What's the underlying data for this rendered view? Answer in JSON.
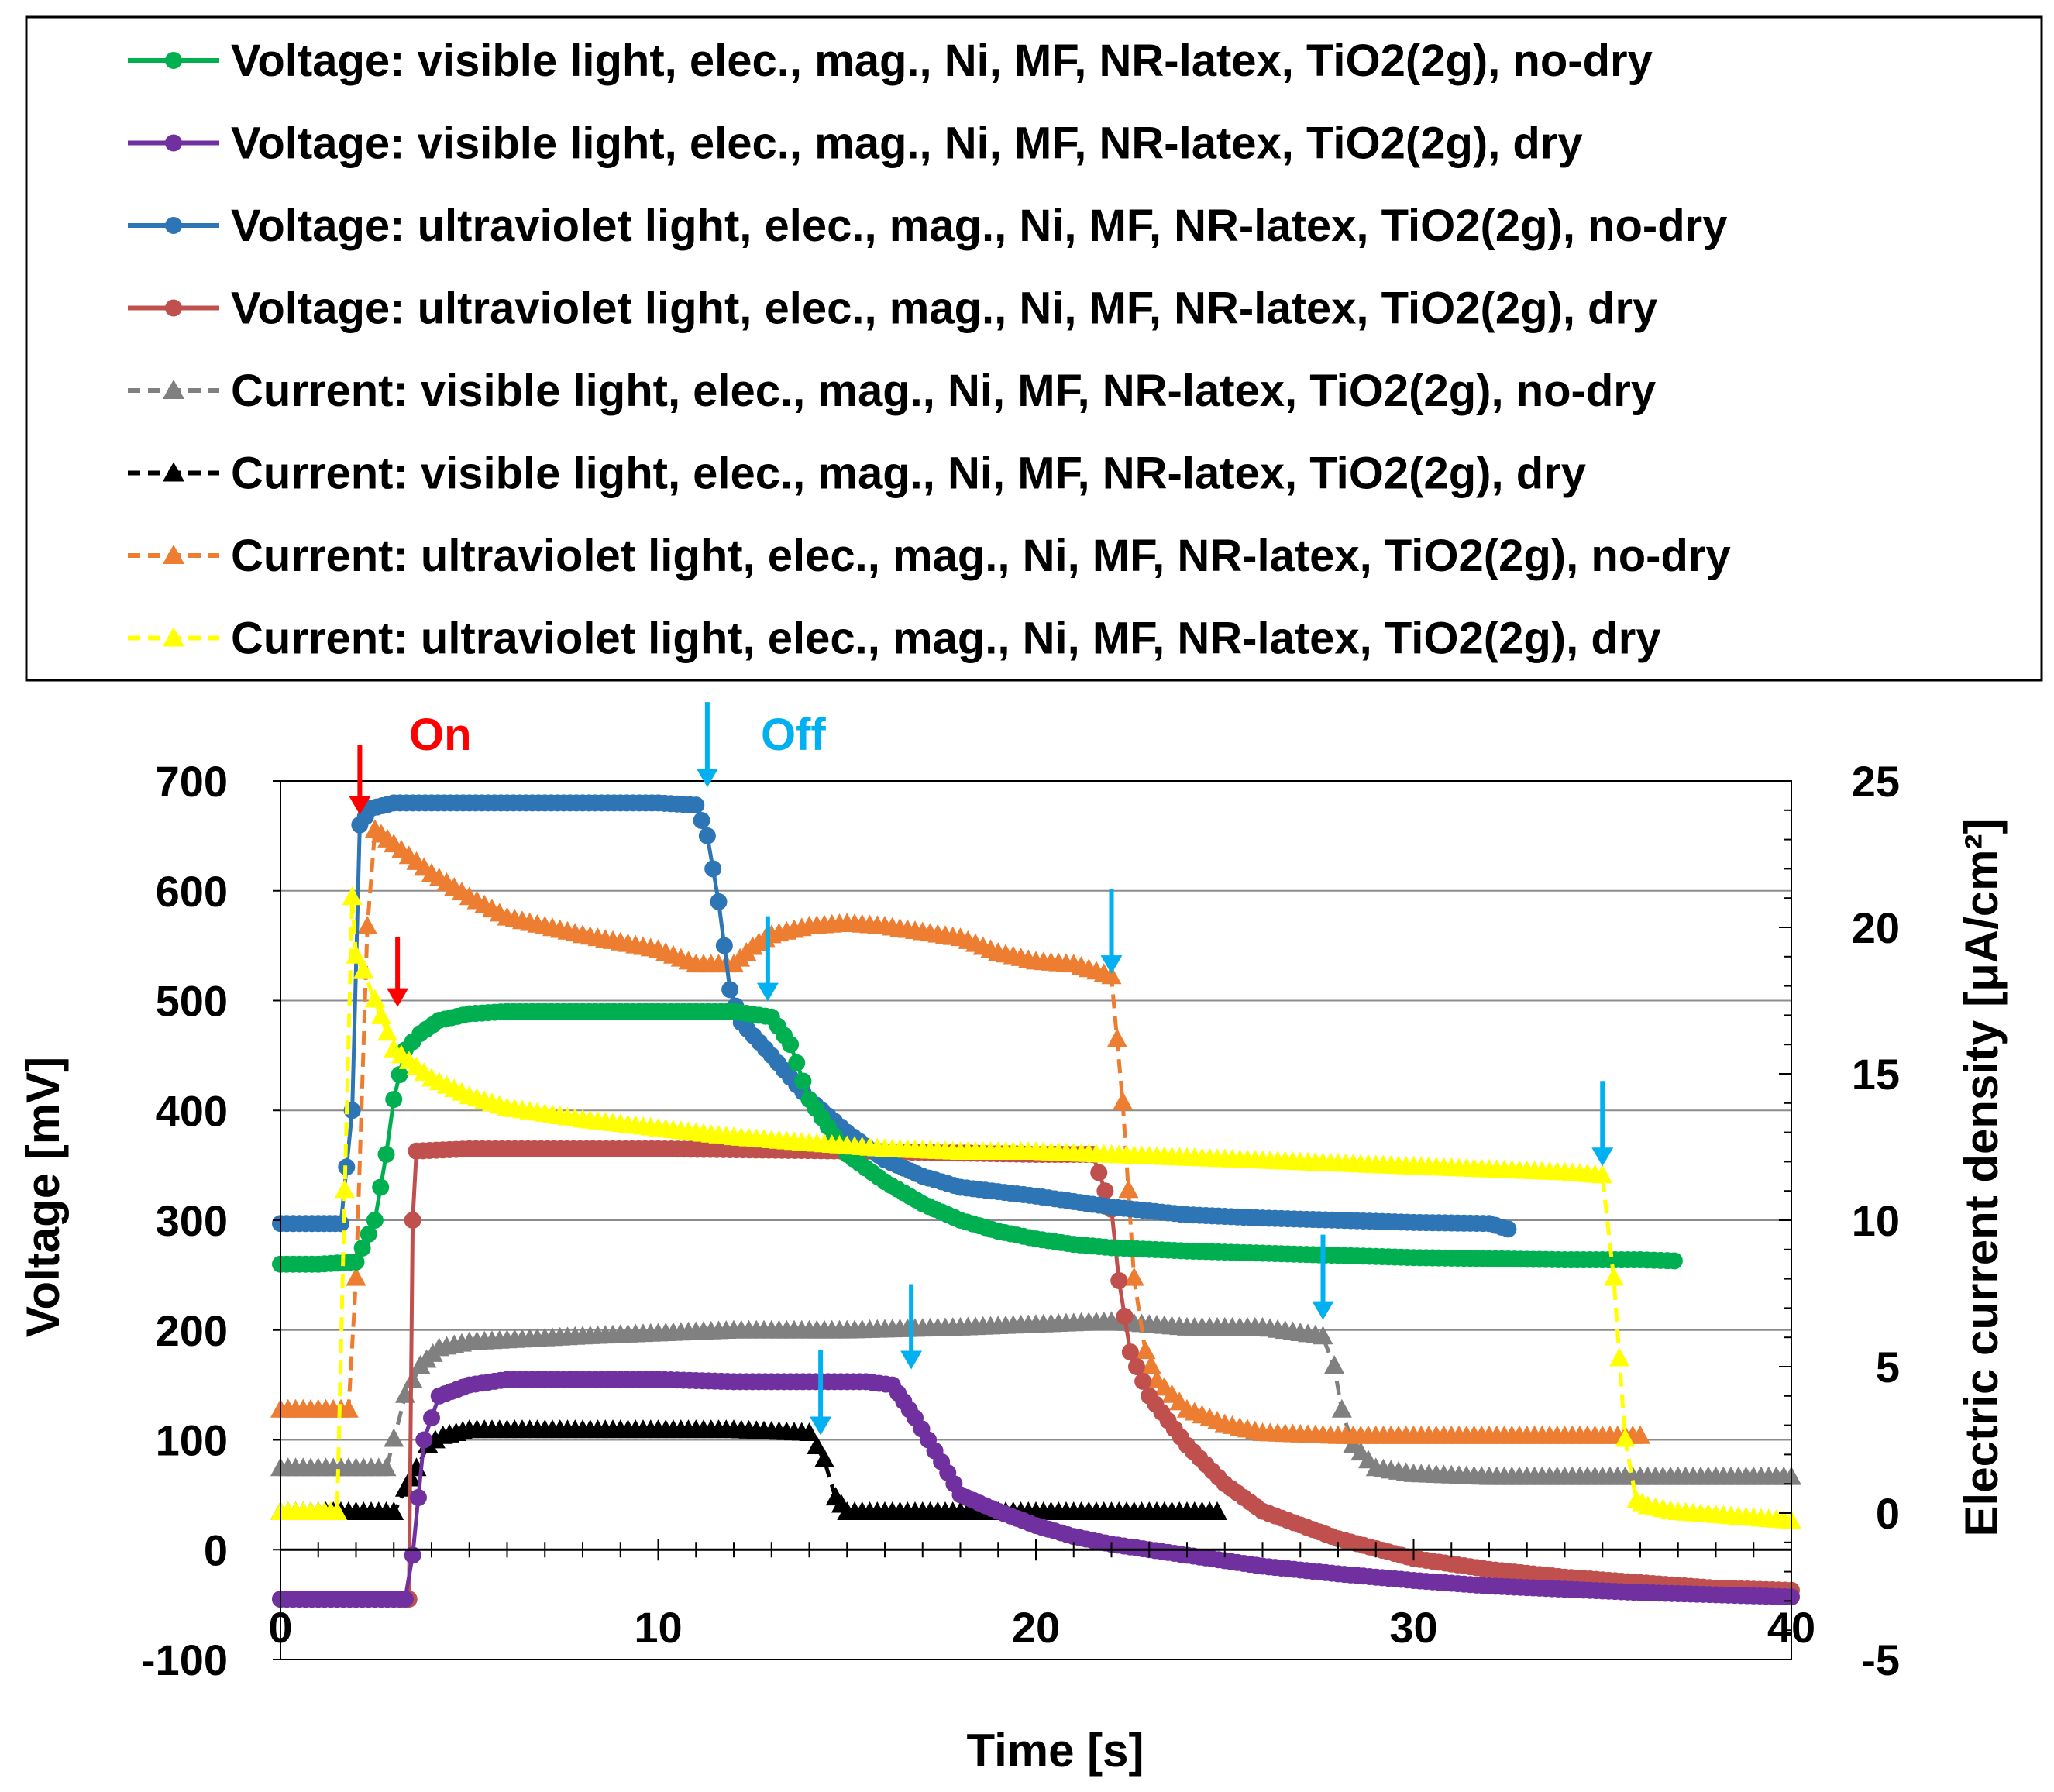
{
  "chart_data": {
    "type": "line",
    "xlabel": "Time   [s]",
    "ylabel": "Voltage   [mV]",
    "y2label": "Electric current density   [μA/cm²]",
    "xlim": [
      0,
      40
    ],
    "ylim": [
      -100,
      700
    ],
    "y2lim": [
      -5,
      25
    ],
    "xticks": [
      0,
      10,
      20,
      30,
      40
    ],
    "yticks": [
      -100,
      0,
      100,
      200,
      300,
      400,
      500,
      600,
      700
    ],
    "y2ticks": [
      -5,
      0,
      5,
      10,
      15,
      20,
      25
    ],
    "grid": "horizontal",
    "legend_position": "top",
    "annotations": [
      {
        "text": "On",
        "color": "#ff0000"
      },
      {
        "text": "Off",
        "color": "#00b0f0"
      }
    ],
    "on_arrows": [
      {
        "x": 2.1,
        "y": 665,
        "color": "#ff0000"
      },
      {
        "x": 3.1,
        "y": 490,
        "color": "#ff0000"
      }
    ],
    "off_arrows": [
      {
        "x": 11.3,
        "y": 690,
        "color": "#00b0f0"
      },
      {
        "x": 12.9,
        "y": 495,
        "color": "#00b0f0"
      },
      {
        "x": 22.0,
        "y": 520,
        "color": "#00b0f0"
      },
      {
        "x": 35.0,
        "y": 345,
        "color": "#00b0f0"
      },
      {
        "x": 27.6,
        "y": 205,
        "color": "#00b0f0"
      },
      {
        "x": 16.7,
        "y": 160,
        "color": "#00b0f0"
      },
      {
        "x": 14.3,
        "y": 100,
        "color": "#00b0f0"
      }
    ],
    "series": [
      {
        "name": "Voltage: visible light,  elec., mag., Ni, MF, NR-latex, TiO2(2g), no-dry",
        "axis": "left",
        "color": "#00b050",
        "marker": "circle",
        "dashed": false,
        "x": [
          0,
          1,
          2,
          2.5,
          2.8,
          3.0,
          3.3,
          3.7,
          4.2,
          5,
          6,
          8,
          10,
          12,
          13,
          13.5,
          14,
          15,
          16,
          17,
          18,
          19,
          20,
          21,
          22,
          24,
          26,
          28,
          30,
          32,
          34,
          36,
          36.9
        ],
        "y": [
          260,
          260,
          262,
          300,
          360,
          410,
          455,
          470,
          482,
          488,
          490,
          490,
          490,
          490,
          485,
          460,
          410,
          360,
          335,
          315,
          300,
          290,
          283,
          278,
          275,
          272,
          270,
          268,
          266,
          265,
          264,
          264,
          263
        ]
      },
      {
        "name": "Voltage: visible light,  elec., mag., Ni, MF, NR-latex, TiO2(2g), dry",
        "axis": "left",
        "color": "#7030a0",
        "marker": "circle",
        "dashed": false,
        "x": [
          0,
          1,
          2,
          3,
          3.3,
          3.5,
          3.8,
          4.2,
          5,
          6,
          8,
          10,
          12,
          14,
          15.5,
          16.2,
          16.8,
          17.5,
          18,
          19,
          20,
          21,
          22,
          24,
          26,
          28,
          30,
          32,
          34,
          36,
          38,
          40
        ],
        "y": [
          -45,
          -45,
          -45,
          -45,
          -45,
          -5,
          100,
          140,
          150,
          155,
          155,
          155,
          153,
          153,
          153,
          150,
          120,
          80,
          50,
          35,
          22,
          12,
          5,
          -5,
          -15,
          -22,
          -28,
          -33,
          -36,
          -39,
          -41,
          -43
        ]
      },
      {
        "name": "Voltage: ultraviolet light,  elec., mag., Ni, MF, NR-latex, TiO2(2g), no-dry",
        "axis": "left",
        "color": "#2e75b6",
        "marker": "circle",
        "dashed": false,
        "x": [
          0,
          1,
          1.6,
          1.9,
          2.1,
          2.4,
          3,
          5,
          8,
          10,
          11,
          11.3,
          11.6,
          11.9,
          12.2,
          13,
          14,
          15,
          16,
          17,
          18,
          20,
          22,
          24,
          26,
          28,
          30,
          32,
          32.5
        ],
        "y": [
          297,
          297,
          297,
          400,
          660,
          675,
          680,
          680,
          680,
          680,
          678,
          650,
          590,
          510,
          480,
          450,
          410,
          380,
          355,
          340,
          330,
          322,
          312,
          305,
          302,
          300,
          298,
          297,
          292
        ]
      },
      {
        "name": "Voltage: ultraviolet light,  elec., mag., Ni, MF, NR-latex, TiO2(2g), dry",
        "axis": "left",
        "color": "#c0504d",
        "marker": "circle",
        "dashed": false,
        "x": [
          0,
          1,
          2,
          3,
          3.4,
          3.5,
          3.6,
          5,
          10,
          15,
          20,
          21.5,
          22,
          22.2,
          22.5,
          23,
          24,
          25,
          26,
          28,
          30,
          32,
          34,
          36,
          38,
          40
        ],
        "y": [
          -45,
          -45,
          -45,
          -45,
          -45,
          300,
          363,
          365,
          365,
          363,
          360,
          360,
          310,
          245,
          180,
          140,
          95,
          60,
          35,
          10,
          -8,
          -18,
          -25,
          -30,
          -35,
          -37
        ]
      },
      {
        "name": "Current: visible light,  elec., mag., Ni, MF, NR-latex, TiO2(2g), no-dry",
        "axis": "right",
        "color": "#808080",
        "marker": "triangle",
        "dashed": true,
        "x": [
          0,
          1,
          2,
          2.8,
          3.0,
          3.3,
          3.7,
          4.2,
          5,
          8,
          12,
          15,
          18,
          20,
          22,
          24,
          26,
          27.6,
          27.9,
          28.1,
          28.4,
          29,
          30,
          32,
          35,
          38,
          40
        ],
        "y": [
          1.5,
          1.5,
          1.5,
          1.5,
          2.5,
          4.0,
          5.0,
          5.6,
          5.8,
          6.0,
          6.2,
          6.2,
          6.3,
          6.4,
          6.5,
          6.3,
          6.3,
          6.0,
          5.0,
          3.5,
          2.3,
          1.5,
          1.3,
          1.2,
          1.2,
          1.2,
          1.2
        ]
      },
      {
        "name": "Current: visible light,  elec., mag., Ni, MF, NR-latex, TiO2(2g), dry",
        "axis": "right",
        "color": "#000000",
        "marker": "triangle",
        "dashed": true,
        "x": [
          0,
          1,
          2,
          3,
          3.3,
          3.6,
          3.9,
          4.3,
          5,
          8,
          12,
          14,
          14.4,
          14.7,
          15,
          16,
          18,
          20,
          22,
          24,
          24.8
        ],
        "y": [
          0.0,
          0.0,
          0.0,
          0.0,
          0.8,
          1.5,
          2.3,
          2.6,
          2.8,
          2.8,
          2.8,
          2.7,
          1.8,
          0.5,
          0.0,
          0.0,
          0.0,
          0.0,
          0.0,
          0.0,
          0.0
        ]
      },
      {
        "name": "Current: ultraviolet light,  elec., mag., Ni, MF, NR-latex, TiO2(2g), no-dry",
        "axis": "right",
        "color": "#ed7d31",
        "marker": "triangle",
        "dashed": true,
        "x": [
          0,
          1,
          1.8,
          2.0,
          2.3,
          2.5,
          3,
          4,
          5,
          6,
          8,
          10,
          11,
          12,
          12.5,
          13,
          14,
          15,
          16,
          17,
          18,
          19,
          20,
          21,
          22,
          22.3,
          22.6,
          22.9,
          23.2,
          24,
          25,
          26,
          28,
          30,
          32,
          34,
          36
        ],
        "y": [
          3.5,
          3.5,
          3.5,
          8,
          20,
          23.3,
          22.8,
          21.8,
          21.0,
          20.3,
          19.7,
          19.2,
          18.7,
          18.7,
          19.3,
          19.7,
          20.0,
          20.1,
          20.0,
          19.8,
          19.6,
          19.1,
          18.8,
          18.7,
          18.3,
          14,
          8,
          5.5,
          4.5,
          3.5,
          3.0,
          2.7,
          2.6,
          2.6,
          2.6,
          2.6,
          2.6
        ]
      },
      {
        "name": "Current: ultraviolet light,  elec., mag., Ni, MF, NR-latex, TiO2(2g), dry",
        "axis": "right",
        "color": "#ffff00",
        "marker": "triangle",
        "dashed": true,
        "x": [
          0,
          1,
          1.5,
          1.7,
          1.9,
          2.0,
          2.2,
          2.5,
          3,
          4,
          5,
          6,
          8,
          10,
          12,
          14,
          16,
          18,
          20,
          22,
          24,
          26,
          28,
          30,
          32,
          34,
          35,
          35.3,
          35.6,
          35.9,
          36.2,
          37,
          38,
          39,
          40
        ],
        "y": [
          0,
          0,
          0,
          11,
          21,
          19,
          18.5,
          17.5,
          15.8,
          14.8,
          14.2,
          13.8,
          13.4,
          13.1,
          12.8,
          12.6,
          12.4,
          12.3,
          12.3,
          12.2,
          12.1,
          12.0,
          11.9,
          11.8,
          11.7,
          11.6,
          11.5,
          8.0,
          2.5,
          0.4,
          0.2,
          0.0,
          -0.1,
          -0.2,
          -0.3
        ]
      }
    ]
  }
}
